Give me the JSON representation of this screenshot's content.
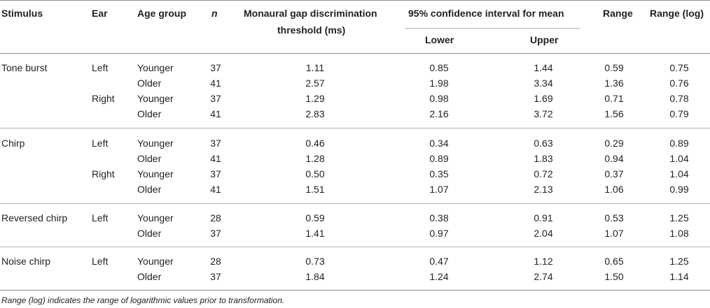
{
  "table": {
    "headers": {
      "stimulus": "Stimulus",
      "ear": "Ear",
      "age_group": "Age group",
      "n": "n",
      "threshold_line1": "Monaural gap discrimination",
      "threshold_line2": "threshold (ms)",
      "ci": "95% confidence interval for mean",
      "lower": "Lower",
      "upper": "Upper",
      "range": "Range",
      "range_log": "Range (log)"
    },
    "rows": [
      {
        "stimulus": "Tone burst",
        "ear": "Left",
        "age_group": "Younger",
        "n": "37",
        "threshold": "1.11",
        "lower": "0.85",
        "upper": "1.44",
        "range": "0.59",
        "range_log": "0.75"
      },
      {
        "stimulus": "",
        "ear": "",
        "age_group": "Older",
        "n": "41",
        "threshold": "2.57",
        "lower": "1.98",
        "upper": "3.34",
        "range": "1.36",
        "range_log": "0.76"
      },
      {
        "stimulus": "",
        "ear": "Right",
        "age_group": "Younger",
        "n": "37",
        "threshold": "1.29",
        "lower": "0.98",
        "upper": "1.69",
        "range": "0.71",
        "range_log": "0.78"
      },
      {
        "stimulus": "",
        "ear": "",
        "age_group": "Older",
        "n": "41",
        "threshold": "2.83",
        "lower": "2.16",
        "upper": "3.72",
        "range": "1.56",
        "range_log": "0.79"
      },
      {
        "stimulus": "Chirp",
        "ear": "Left",
        "age_group": "Younger",
        "n": "37",
        "threshold": "0.46",
        "lower": "0.34",
        "upper": "0.63",
        "range": "0.29",
        "range_log": "0.89"
      },
      {
        "stimulus": "",
        "ear": "",
        "age_group": "Older",
        "n": "41",
        "threshold": "1.28",
        "lower": "0.89",
        "upper": "1.83",
        "range": "0.94",
        "range_log": "1.04"
      },
      {
        "stimulus": "",
        "ear": "Right",
        "age_group": "Younger",
        "n": "37",
        "threshold": "0.50",
        "lower": "0.35",
        "upper": "0.72",
        "range": "0.37",
        "range_log": "1.04"
      },
      {
        "stimulus": "",
        "ear": "",
        "age_group": "Older",
        "n": "41",
        "threshold": "1.51",
        "lower": "1.07",
        "upper": "2.13",
        "range": "1.06",
        "range_log": "0.99"
      },
      {
        "stimulus": "Reversed chirp",
        "ear": "Left",
        "age_group": "Younger",
        "n": "28",
        "threshold": "0.59",
        "lower": "0.38",
        "upper": "0.91",
        "range": "0.53",
        "range_log": "1.25"
      },
      {
        "stimulus": "",
        "ear": "",
        "age_group": "Older",
        "n": "37",
        "threshold": "1.41",
        "lower": "0.97",
        "upper": "2.04",
        "range": "1.07",
        "range_log": "1.08"
      },
      {
        "stimulus": "Noise chirp",
        "ear": "Left",
        "age_group": "Younger",
        "n": "28",
        "threshold": "0.73",
        "lower": "0.47",
        "upper": "1.12",
        "range": "0.65",
        "range_log": "1.25"
      },
      {
        "stimulus": "",
        "ear": "",
        "age_group": "Older",
        "n": "37",
        "threshold": "1.84",
        "lower": "1.24",
        "upper": "2.74",
        "range": "1.50",
        "range_log": "1.14"
      }
    ]
  },
  "note": "Range (log) indicates the range of logarithmic values prior to transformation."
}
